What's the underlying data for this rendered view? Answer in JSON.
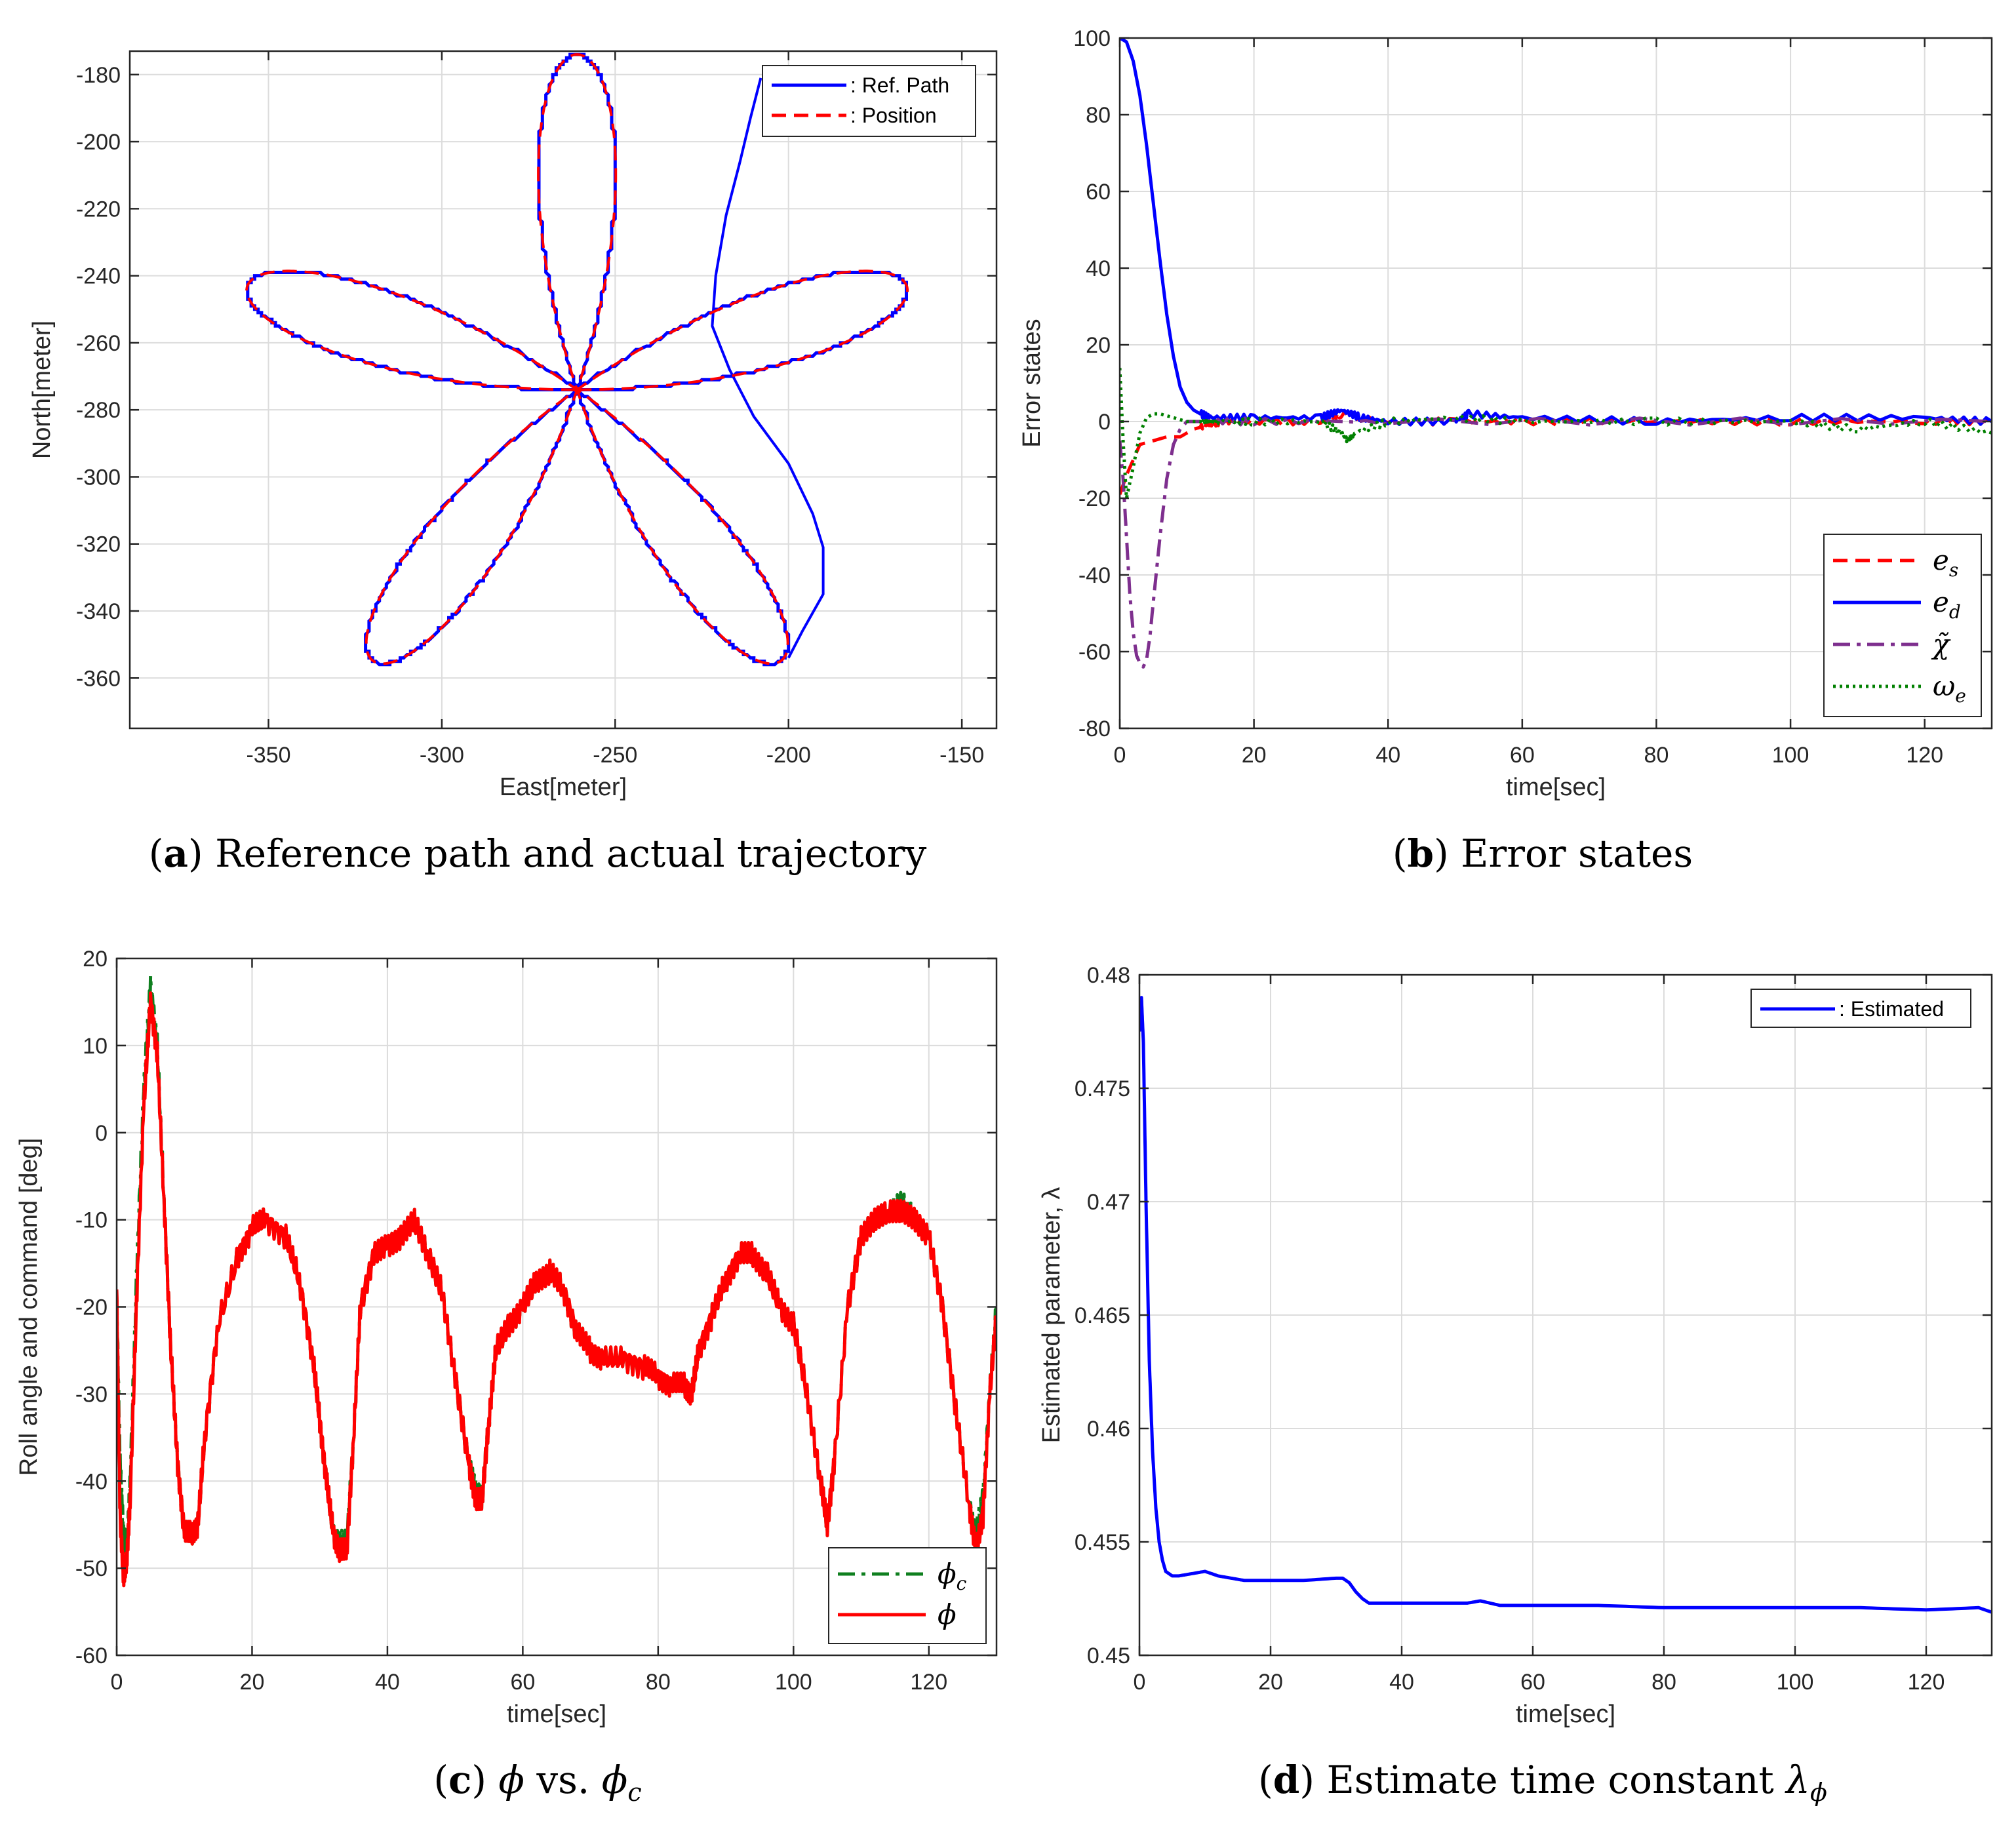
{
  "colors": {
    "blue": "#0000ff",
    "red": "#ff0000",
    "purple": "#7e2f8e",
    "green": "#008000",
    "darkgreen": "#0f7f1f",
    "grid": "#dcdcdc",
    "axis": "#262626"
  },
  "chart_data": [
    {
      "id": "a",
      "type": "line",
      "caption_label": "a",
      "caption_text": "Reference path and actual trajectory",
      "xlabel": "East[meter]",
      "ylabel": "North[meter]",
      "xlim": [
        -390,
        -140
      ],
      "ylim": [
        -375,
        -173
      ],
      "xticks": [
        -350,
        -300,
        -250,
        -200,
        -150
      ],
      "yticks": [
        -180,
        -200,
        -220,
        -240,
        -260,
        -280,
        -300,
        -320,
        -340,
        -360
      ],
      "grid": true,
      "legend_position": "top-right",
      "description": "five-petal rose path: center (-261,-274), petal radius 100 m, petals at 90, 18, -54, -126, 162 deg",
      "rose": {
        "center": [
          -261,
          -274
        ],
        "radius": 100,
        "petals": 5
      },
      "series": [
        {
          "name": ": Ref. Path",
          "color": "#0000ff",
          "style": "solid"
        },
        {
          "name": ": Position",
          "color": "#ff0000",
          "style": "dashed"
        }
      ],
      "initial_transient": {
        "x": [
          -200,
          -196,
          -190,
          -190,
          -193,
          -200,
          -210,
          -217,
          -222,
          -221,
          -218,
          -214,
          -211,
          -209,
          -208
        ],
        "y": [
          -354,
          -346,
          -335,
          -321,
          -311,
          -296,
          -282,
          -268,
          -255,
          -240,
          -222,
          -206,
          -193,
          -185,
          -181
        ]
      }
    },
    {
      "id": "b",
      "type": "line",
      "caption_label": "b",
      "caption_text": "Error states",
      "xlabel": "time[sec]",
      "ylabel": "Error states",
      "xlim": [
        0,
        130
      ],
      "ylim": [
        -80,
        100
      ],
      "xticks": [
        0,
        20,
        40,
        60,
        80,
        100,
        120
      ],
      "yticks": [
        100,
        80,
        60,
        40,
        20,
        0,
        -20,
        -40,
        -60,
        -80
      ],
      "grid": true,
      "legend_position": "bottom-right",
      "series": [
        {
          "name": "e_s",
          "label_main": "e",
          "label_sub": "s",
          "color": "#ff0000",
          "style": "dashed",
          "x": [
            0,
            1,
            2,
            3,
            5,
            7,
            9,
            11,
            13,
            15,
            20,
            30,
            33,
            40,
            50,
            60,
            80,
            100,
            120,
            130
          ],
          "y": [
            -19,
            -14,
            -10,
            -6,
            -5,
            -4,
            -4,
            -2,
            -1,
            0,
            0,
            0,
            2,
            0,
            0,
            0,
            0,
            0,
            0,
            0
          ]
        },
        {
          "name": "e_d",
          "label_main": "e",
          "label_sub": "d",
          "color": "#0000ff",
          "style": "solid",
          "x": [
            0,
            1,
            2,
            3,
            4,
            5,
            6,
            7,
            8,
            9,
            10,
            11,
            12,
            14,
            20,
            30,
            33,
            36,
            40,
            50,
            52,
            60,
            80,
            100,
            120,
            130
          ],
          "y": [
            100,
            99,
            94,
            85,
            72,
            57,
            42,
            28,
            17,
            9,
            5,
            3,
            2,
            1,
            1,
            1,
            3,
            1,
            0,
            0,
            2,
            1,
            0,
            1,
            1,
            0
          ]
        },
        {
          "name": "chi_tilde",
          "label_main": "χ̃",
          "label_sub": "",
          "color": "#7e2f8e",
          "style": "dashdot",
          "x": [
            0,
            0.5,
            1,
            1.5,
            2,
            2.5,
            3,
            3.5,
            4,
            4.5,
            5,
            6,
            7,
            8,
            9,
            10,
            12,
            20,
            40,
            130
          ],
          "y": [
            -5,
            -15,
            -30,
            -45,
            -55,
            -61,
            -63,
            -64,
            -62,
            -56,
            -47,
            -30,
            -15,
            -6,
            -2,
            0,
            0,
            0,
            0,
            0
          ]
        },
        {
          "name": "omega_e",
          "label_main": "ω",
          "label_sub": "e",
          "color": "#008000",
          "style": "dotted",
          "x": [
            0,
            0.5,
            1,
            2,
            3,
            4,
            5,
            6,
            8,
            10,
            12,
            15,
            20,
            30,
            33,
            34,
            35,
            40,
            50,
            60,
            80,
            100,
            110,
            120,
            130
          ],
          "y": [
            14,
            -5,
            -20,
            -12,
            -3,
            1,
            2,
            2,
            1,
            0,
            0,
            0,
            0,
            0,
            -3,
            -5,
            -3,
            0,
            1,
            0,
            0,
            0,
            -2,
            0,
            -3
          ]
        }
      ]
    },
    {
      "id": "c",
      "type": "line",
      "caption_label": "c",
      "caption_text_parts": [
        "ϕ",
        " vs. ",
        "ϕ",
        "c"
      ],
      "xlabel": "time[sec]",
      "ylabel": "Roll angle and command [deg]",
      "xlim": [
        0,
        130
      ],
      "ylim": [
        -60,
        20
      ],
      "xticks": [
        0,
        20,
        40,
        60,
        80,
        100,
        120
      ],
      "yticks": [
        20,
        10,
        0,
        -10,
        -20,
        -30,
        -40,
        -50,
        -60
      ],
      "grid": true,
      "legend_position": "bottom-right",
      "series": [
        {
          "name": "phi_c",
          "label_main": "ϕ",
          "label_sub": "c",
          "color": "#0f7f1f",
          "style": "dashdot",
          "x": [
            0,
            0.5,
            1,
            1.5,
            2,
            3,
            4,
            5,
            6,
            7,
            8,
            9,
            10,
            11,
            12,
            13,
            15,
            18,
            20,
            22,
            25,
            27,
            29,
            30,
            31,
            32,
            33,
            34,
            35,
            36,
            38,
            40,
            42,
            44,
            46,
            48,
            50,
            52,
            53,
            54,
            55,
            56,
            58,
            60,
            62,
            64,
            66,
            68,
            70,
            72,
            75,
            78,
            80,
            82,
            84,
            85,
            86,
            88,
            90,
            92,
            94,
            96,
            98,
            100,
            102,
            104,
            105,
            106,
            108,
            110,
            112,
            114,
            116,
            118,
            120,
            122,
            124,
            126,
            127,
            128,
            129,
            130
          ],
          "y": [
            -19,
            -38,
            -46,
            -48,
            -40,
            -15,
            5,
            17,
            10,
            -8,
            -25,
            -38,
            -46,
            -46,
            -45,
            -35,
            -22,
            -14,
            -11,
            -10,
            -12,
            -17,
            -26,
            -33,
            -40,
            -46,
            -47,
            -47,
            -35,
            -20,
            -14,
            -13,
            -12,
            -10,
            -14,
            -18,
            -28,
            -38,
            -41,
            -42,
            -33,
            -25,
            -22,
            -20,
            -17,
            -16,
            -18,
            -23,
            -25,
            -26,
            -26,
            -27,
            -28,
            -29,
            -29,
            -30,
            -25,
            -21,
            -17,
            -14,
            -14,
            -16,
            -20,
            -22,
            -30,
            -40,
            -45,
            -38,
            -20,
            -12,
            -10,
            -9,
            -8,
            -10,
            -12,
            -20,
            -32,
            -43,
            -46,
            -42,
            -30,
            -20
          ]
        },
        {
          "name": "phi",
          "label_main": "ϕ",
          "label_sub": "",
          "color": "#ff0000",
          "style": "solid",
          "x": [
            0,
            0.5,
            1,
            1.5,
            2,
            3,
            4,
            5,
            6,
            7,
            8,
            9,
            10,
            11,
            12,
            13,
            15,
            18,
            20,
            22,
            25,
            27,
            29,
            30,
            31,
            32,
            33,
            34,
            35,
            36,
            38,
            40,
            42,
            44,
            46,
            48,
            50,
            52,
            53,
            54,
            55,
            56,
            58,
            60,
            62,
            64,
            66,
            68,
            70,
            72,
            75,
            78,
            80,
            82,
            84,
            85,
            86,
            88,
            90,
            92,
            94,
            96,
            98,
            100,
            102,
            104,
            105,
            106,
            108,
            110,
            112,
            114,
            116,
            118,
            120,
            122,
            124,
            126,
            127,
            128,
            129,
            130
          ],
          "y": [
            -18,
            -44,
            -51,
            -49,
            -42,
            -18,
            3,
            15,
            9,
            -8,
            -25,
            -38,
            -46,
            -46,
            -45,
            -35,
            -22,
            -14,
            -11,
            -10,
            -12,
            -17,
            -26,
            -33,
            -40,
            -46,
            -48,
            -48,
            -35,
            -20,
            -14,
            -13,
            -12,
            -10,
            -14,
            -18,
            -28,
            -38,
            -42,
            -42,
            -33,
            -25,
            -22,
            -20,
            -17,
            -16,
            -18,
            -23,
            -25,
            -26,
            -26,
            -27,
            -28,
            -29,
            -29,
            -30,
            -25,
            -21,
            -17,
            -14,
            -14,
            -16,
            -20,
            -22,
            -30,
            -40,
            -45,
            -38,
            -20,
            -12,
            -10,
            -9,
            -9,
            -10,
            -12,
            -20,
            -32,
            -43,
            -48,
            -44,
            -30,
            -21
          ]
        }
      ]
    },
    {
      "id": "d",
      "type": "line",
      "caption_label": "d",
      "caption_text": "Estimate time constant ",
      "caption_symbol_main": "λ",
      "caption_symbol_sub": "ϕ",
      "xlabel": "time[sec]",
      "ylabel": "Estimated parameter, λ",
      "xlim": [
        0,
        130
      ],
      "ylim": [
        0.45,
        0.48
      ],
      "xticks": [
        0,
        20,
        40,
        60,
        80,
        100,
        120
      ],
      "yticks": [
        0.48,
        0.475,
        0.47,
        0.465,
        0.46,
        0.455,
        0.45
      ],
      "ytick_labels": [
        "0.48",
        "0.475",
        "0.47",
        "0.465",
        "0.46",
        "0.455",
        "0.45"
      ],
      "grid": true,
      "legend_position": "top-right",
      "series": [
        {
          "name": ": Estimated",
          "color": "#0000ff",
          "style": "solid",
          "x": [
            0,
            0.3,
            0.6,
            1,
            1.5,
            2,
            2.5,
            3,
            3.5,
            4,
            5,
            6,
            8,
            10,
            12,
            14,
            16,
            20,
            25,
            30,
            31,
            32,
            33,
            34,
            35,
            36,
            40,
            50,
            52,
            55,
            60,
            70,
            80,
            90,
            100,
            110,
            120,
            128,
            130
          ],
          "y": [
            0.4775,
            0.479,
            0.477,
            0.47,
            0.463,
            0.459,
            0.4565,
            0.455,
            0.4542,
            0.4537,
            0.4535,
            0.4535,
            0.4536,
            0.4537,
            0.4535,
            0.4534,
            0.4533,
            0.4533,
            0.4533,
            0.4534,
            0.4534,
            0.4532,
            0.4528,
            0.4525,
            0.4523,
            0.4523,
            0.4523,
            0.4523,
            0.4524,
            0.4522,
            0.4522,
            0.4522,
            0.4521,
            0.4521,
            0.4521,
            0.4521,
            0.452,
            0.4521,
            0.4519
          ]
        }
      ]
    }
  ]
}
